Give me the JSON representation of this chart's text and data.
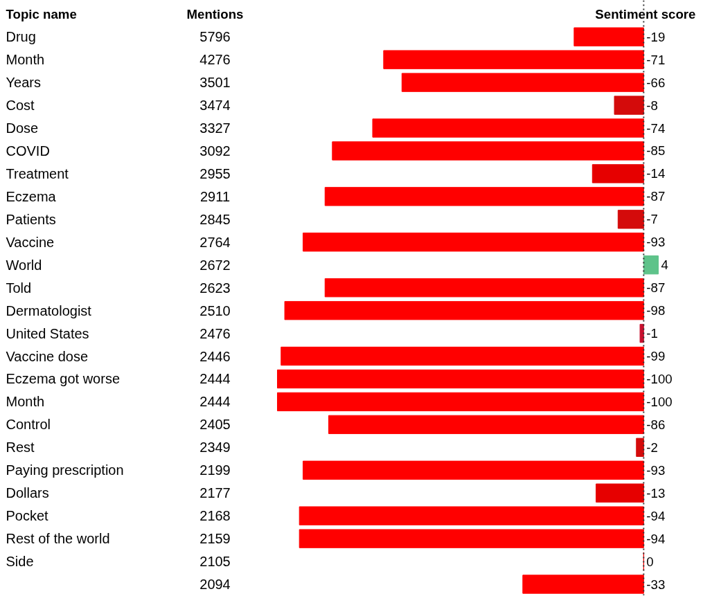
{
  "chart_data": [
    {
      "type": "bar",
      "orientation": "horizontal",
      "ylabel": "Topic name",
      "title": "Sentiment score",
      "data_labels": true,
      "categories": [
        "Drug",
        "Month",
        "Years",
        "Cost",
        "Dose",
        "COVID",
        "Treatment",
        "Eczema",
        "Patients",
        "Vaccine",
        "World",
        "Told",
        "Dermatologist",
        "United States",
        "Vaccine dose",
        "Eczema got worse",
        "Month",
        "Control",
        "Rest",
        "Paying prescription",
        "Dollars",
        "Pocket",
        "Rest of the world",
        "Side",
        null
      ],
      "values": [
        -19,
        -71,
        -66,
        -8,
        -74,
        -85,
        -14,
        -87,
        -7,
        -93,
        4,
        -87,
        -98,
        -1,
        -99,
        -100,
        -100,
        -86,
        -2,
        -93,
        -13,
        -94,
        -94,
        0,
        -33
      ],
      "colors": [
        "#ff0000",
        "#ff0000",
        "#ff0000",
        "#d40b0b",
        "#ff0000",
        "#ff0000",
        "#e60000",
        "#ff0000",
        "#d40b0b",
        "#ff0000",
        "#5ec38a",
        "#ff0000",
        "#ff0000",
        "#c8102e",
        "#ff0000",
        "#ff0000",
        "#ff0000",
        "#ff0000",
        "#d40b0b",
        "#ff0000",
        "#e60000",
        "#ff0000",
        "#ff0000",
        "#ff0000",
        "#ff0000"
      ],
      "ref_lines": [
        {
          "axis": "x",
          "value": 0,
          "line_style": "dotted",
          "color": "#333333"
        }
      ]
    },
    {
      "type": "other",
      "title": "Mentions",
      "data_labels": true,
      "values": [
        5796,
        4276,
        3501,
        3474,
        3327,
        3092,
        2955,
        2911,
        2845,
        2764,
        2672,
        2623,
        2510,
        2476,
        2446,
        2444,
        2444,
        2405,
        2349,
        2199,
        2177,
        2168,
        2159,
        2105,
        2094
      ]
    }
  ]
}
